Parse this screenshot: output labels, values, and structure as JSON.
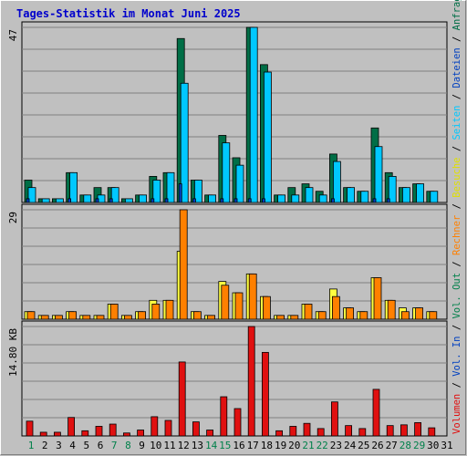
{
  "title": "Tages-Statistik im Monat Juni 2025",
  "colors": {
    "anfragen": "#006e46",
    "dateien": "#00c8ff",
    "seiten": "#0040c0",
    "besuche": "#ffff40",
    "rechner": "#ff8000",
    "volumen": "#e01010",
    "weekend_day": "#00804a",
    "weekday": "#000000",
    "background": "#c0c0c0"
  },
  "chart_data": [
    {
      "type": "bar",
      "panel": "top",
      "ytick_label": "47",
      "ylim": [
        0,
        47
      ],
      "categories": [
        "1",
        "2",
        "3",
        "4",
        "5",
        "6",
        "7",
        "8",
        "9",
        "10",
        "11",
        "12",
        "13",
        "14",
        "15",
        "16",
        "17",
        "18",
        "19",
        "20",
        "21",
        "22",
        "23",
        "24",
        "25",
        "26",
        "27",
        "28",
        "29",
        "30",
        "31"
      ],
      "series": [
        {
          "name": "Anfragen",
          "values": [
            6,
            1,
            1,
            8,
            2,
            4,
            4,
            1,
            2,
            7,
            8,
            44,
            6,
            2,
            18,
            12,
            47,
            37,
            2,
            4,
            5,
            3,
            13,
            4,
            3,
            20,
            8,
            4,
            5,
            3,
            null
          ]
        },
        {
          "name": "Dateien",
          "values": [
            4,
            1,
            1,
            8,
            2,
            2,
            4,
            1,
            2,
            6,
            8,
            32,
            6,
            2,
            16,
            10,
            47,
            35,
            2,
            2,
            4,
            2,
            11,
            4,
            3,
            15,
            7,
            4,
            5,
            3,
            null
          ]
        },
        {
          "name": "Seiten",
          "values": [
            1,
            0,
            0,
            1,
            0,
            1,
            1,
            0,
            0,
            1,
            1,
            5,
            1,
            0,
            1,
            1,
            1,
            1,
            0,
            0,
            0,
            0,
            1,
            0,
            0,
            1,
            1,
            0,
            0,
            0,
            null
          ]
        }
      ]
    },
    {
      "type": "bar",
      "panel": "middle",
      "ytick_label": "29",
      "ylim": [
        0,
        29
      ],
      "categories": [
        "1",
        "2",
        "3",
        "4",
        "5",
        "6",
        "7",
        "8",
        "9",
        "10",
        "11",
        "12",
        "13",
        "14",
        "15",
        "16",
        "17",
        "18",
        "19",
        "20",
        "21",
        "22",
        "23",
        "24",
        "25",
        "26",
        "27",
        "28",
        "29",
        "30",
        "31"
      ],
      "series": [
        {
          "name": "Besuche",
          "values": [
            2,
            1,
            1,
            2,
            1,
            1,
            4,
            1,
            2,
            5,
            5,
            18,
            2,
            1,
            10,
            7,
            12,
            6,
            1,
            1,
            4,
            2,
            8,
            3,
            2,
            11,
            5,
            3,
            3,
            2,
            null
          ]
        },
        {
          "name": "Rechner",
          "values": [
            2,
            1,
            1,
            2,
            1,
            1,
            4,
            1,
            2,
            4,
            5,
            29,
            2,
            1,
            9,
            7,
            12,
            6,
            1,
            1,
            4,
            2,
            6,
            3,
            2,
            11,
            5,
            2,
            3,
            2,
            null
          ]
        }
      ]
    },
    {
      "type": "bar",
      "panel": "bottom",
      "ytick_label": "14.80 KB",
      "ylim": [
        0,
        14.8
      ],
      "categories": [
        "1",
        "2",
        "3",
        "4",
        "5",
        "6",
        "7",
        "8",
        "9",
        "10",
        "11",
        "12",
        "13",
        "14",
        "15",
        "16",
        "17",
        "18",
        "19",
        "20",
        "21",
        "22",
        "23",
        "24",
        "25",
        "26",
        "27",
        "28",
        "29",
        "30",
        "31"
      ],
      "series": [
        {
          "name": "Volumen",
          "values": [
            2.0,
            0.5,
            0.5,
            2.5,
            0.7,
            1.3,
            1.6,
            0.4,
            0.8,
            2.6,
            2.1,
            10.0,
            1.9,
            0.8,
            5.3,
            3.7,
            14.8,
            11.3,
            0.7,
            1.3,
            1.7,
            1.0,
            4.6,
            1.4,
            1.0,
            6.3,
            1.4,
            1.5,
            1.8,
            1.1,
            null
          ]
        }
      ]
    }
  ],
  "right_legend": [
    {
      "text": "Volumen",
      "color": "#e01010"
    },
    {
      "text": " / ",
      "color": "#000000"
    },
    {
      "text": "Vol. In",
      "color": "#0040c0"
    },
    {
      "text": " / ",
      "color": "#000000"
    },
    {
      "text": "Vol. Out",
      "color": "#00804a"
    },
    {
      "text": " / ",
      "color": "#000000"
    },
    {
      "text": "Rechner",
      "color": "#ff8000"
    },
    {
      "text": " / ",
      "color": "#000000"
    },
    {
      "text": "Besuche",
      "color": "#e0e000"
    },
    {
      "text": " / ",
      "color": "#000000"
    },
    {
      "text": "Seiten",
      "color": "#00c8ff"
    },
    {
      "text": " / ",
      "color": "#000000"
    },
    {
      "text": "Dateien",
      "color": "#0040c0"
    },
    {
      "text": " / ",
      "color": "#000000"
    },
    {
      "text": "Anfragen",
      "color": "#006e46"
    }
  ],
  "weekend_days": [
    "1",
    "7",
    "8",
    "14",
    "15",
    "21",
    "22",
    "28",
    "29"
  ]
}
